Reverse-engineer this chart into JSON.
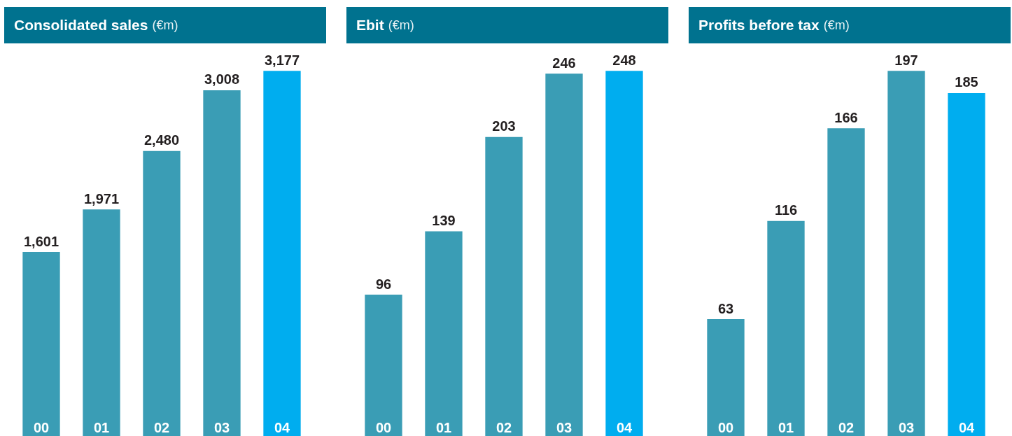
{
  "chart_data": [
    {
      "type": "bar",
      "title": "Consolidated sales",
      "subtitle": "(€m)",
      "categories": [
        "00",
        "01",
        "02",
        "03",
        "04"
      ],
      "values": [
        1601,
        1971,
        2480,
        3008,
        3177
      ],
      "value_labels": [
        "1,601",
        "1,971",
        "2,480",
        "3,008",
        "3,177"
      ],
      "colors": [
        "#3a9db5",
        "#3a9db5",
        "#3a9db5",
        "#3a9db5",
        "#00adef"
      ],
      "tick_labels": "x"
    },
    {
      "type": "bar",
      "title": "Ebit",
      "subtitle": "(€m)",
      "categories": [
        "00",
        "01",
        "02",
        "03",
        "04"
      ],
      "values": [
        96,
        139,
        203,
        246,
        248
      ],
      "colors": [
        "#3a9db5",
        "#3a9db5",
        "#3a9db5",
        "#3a9db5",
        "#00adef"
      ],
      "tick_labels": "x",
      "data_labels": true
    },
    {
      "type": "bar",
      "title": "Profits before tax",
      "subtitle": "(€m)",
      "categories": [
        "00",
        "01",
        "02",
        "03",
        "04"
      ],
      "values": [
        63,
        116,
        166,
        197,
        185
      ],
      "colors": [
        "#3a9db5",
        "#3a9db5",
        "#3a9db5",
        "#3a9db5",
        "#00adef"
      ],
      "tick_labels": "x",
      "data_labels": true
    }
  ]
}
